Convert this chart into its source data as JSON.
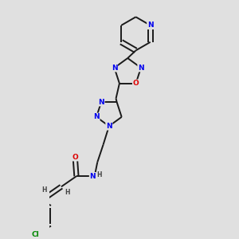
{
  "bg_color": "#e0e0e0",
  "bond_color": "#1a1a1a",
  "bond_width": 1.4,
  "atom_colors": {
    "N": "#0000ee",
    "O": "#dd0000",
    "Cl": "#008800",
    "H": "#444444"
  },
  "font_size_atom": 6.5,
  "font_size_h": 5.5
}
